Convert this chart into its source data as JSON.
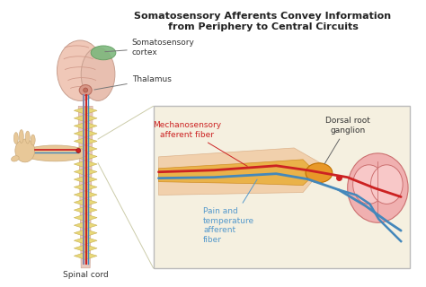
{
  "title_line1": "Somatosensory Afferents Convey Information",
  "title_line2": "from Periphery to Central Circuits",
  "title_fontsize": 8.0,
  "title_fontweight": "bold",
  "label_somatosensory": "Somatosensory\ncortex",
  "label_thalamus": "Thalamus",
  "label_spinal_cord": "Spinal cord",
  "label_mechanosensory": "Mechanosensory\nafferent fiber",
  "label_pain": "Pain and\ntemperature\nafferent\nfiber",
  "label_dorsal": "Dorsal root\nganglion",
  "bg_color": "#ffffff",
  "brain_color": "#f0c8b8",
  "brain_right_color": "#e8bfb0",
  "brain_highlight_color": "#7db87d",
  "spine_body_color": "#e8c8b8",
  "spine_color": "#e8d878",
  "spine_outline": "#c8b050",
  "nerve_red": "#cc2222",
  "nerve_blue": "#4488bb",
  "nerve_gray": "#8888aa",
  "hand_color": "#e8c898",
  "ganglion_color": "#e89828",
  "spinal_cord_color": "#f0b8b8",
  "spinal_cord_inner": "#f8d0d0",
  "box_bg": "#f5f0e0",
  "box_edge": "#bbbbbb",
  "mechanosensory_color": "#cc2222",
  "pain_color": "#5599cc",
  "dorsal_color": "#333333",
  "arm_skin": "#f0c8a0",
  "nerve_bundle_color": "#e8a828",
  "zoom_line_color": "#ccccaa"
}
